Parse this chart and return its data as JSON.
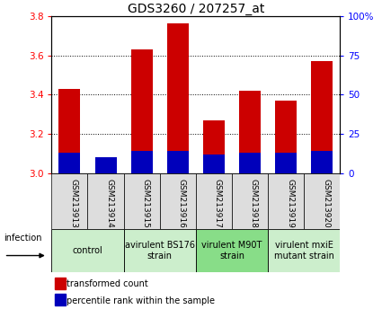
{
  "title": "GDS3260 / 207257_at",
  "samples": [
    "GSM213913",
    "GSM213914",
    "GSM213915",
    "GSM213916",
    "GSM213917",
    "GSM213918",
    "GSM213919",
    "GSM213920"
  ],
  "red_values": [
    3.43,
    3.07,
    3.63,
    3.76,
    3.27,
    3.42,
    3.37,
    3.57
  ],
  "blue_pct": [
    13,
    10,
    14,
    14,
    12,
    13,
    13,
    14
  ],
  "ymin": 3.0,
  "ymax": 3.8,
  "yticks": [
    3.0,
    3.2,
    3.4,
    3.6,
    3.8
  ],
  "y2min": 0,
  "y2max": 100,
  "y2ticks": [
    0,
    25,
    50,
    75,
    100
  ],
  "y2tick_labels": [
    "0",
    "25",
    "50",
    "75",
    "100%"
  ],
  "bar_width": 0.6,
  "red_color": "#cc0000",
  "blue_color": "#0000bb",
  "groups": [
    {
      "label": "control",
      "spans": [
        0,
        2
      ],
      "color": "#cceecc"
    },
    {
      "label": "avirulent BS176\nstrain",
      "spans": [
        2,
        4
      ],
      "color": "#cceecc"
    },
    {
      "label": "virulent M90T\nstrain",
      "spans": [
        4,
        6
      ],
      "color": "#88dd88"
    },
    {
      "label": "virulent mxiE\nmutant strain",
      "spans": [
        6,
        8
      ],
      "color": "#cceecc"
    }
  ],
  "infection_label": "infection",
  "legend_red": "transformed count",
  "legend_blue": "percentile rank within the sample",
  "title_fontsize": 10,
  "tick_fontsize": 7.5,
  "group_fontsize": 7,
  "sample_fontsize": 6.5,
  "legend_fontsize": 7
}
